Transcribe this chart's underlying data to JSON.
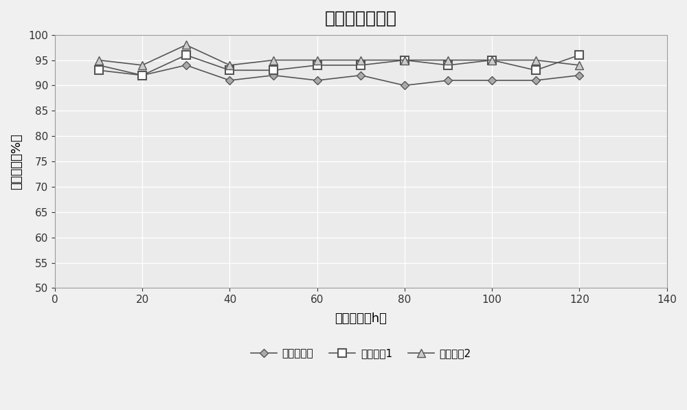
{
  "title": "氯化氢处理效率",
  "xlabel": "运行时间（h）",
  "ylabel": "去除效率（%）",
  "x": [
    10,
    20,
    30,
    40,
    50,
    60,
    70,
    80,
    90,
    100,
    110,
    120
  ],
  "series1_label": "实施例方案",
  "series2_label": "对比方案1",
  "series3_label": "对比方案2",
  "series1_y": [
    94,
    92,
    94,
    91,
    92,
    91,
    92,
    90,
    91,
    91,
    91,
    92
  ],
  "series2_y": [
    93,
    92,
    96,
    93,
    93,
    94,
    94,
    95,
    94,
    95,
    93,
    96
  ],
  "series3_y": [
    95,
    94,
    98,
    94,
    95,
    95,
    95,
    95,
    95,
    95,
    95,
    94
  ],
  "xlim": [
    0,
    140
  ],
  "ylim": [
    50,
    100
  ],
  "yticks": [
    50,
    55,
    60,
    65,
    70,
    75,
    80,
    85,
    90,
    95,
    100
  ],
  "xticks": [
    0,
    20,
    40,
    60,
    80,
    100,
    120,
    140
  ],
  "line_color": "#555555",
  "bg_color": "#ebebeb",
  "plot_bg": "#ebebeb",
  "grid_color": "#ffffff",
  "title_fontsize": 18,
  "label_fontsize": 13,
  "tick_fontsize": 11,
  "legend_fontsize": 11
}
